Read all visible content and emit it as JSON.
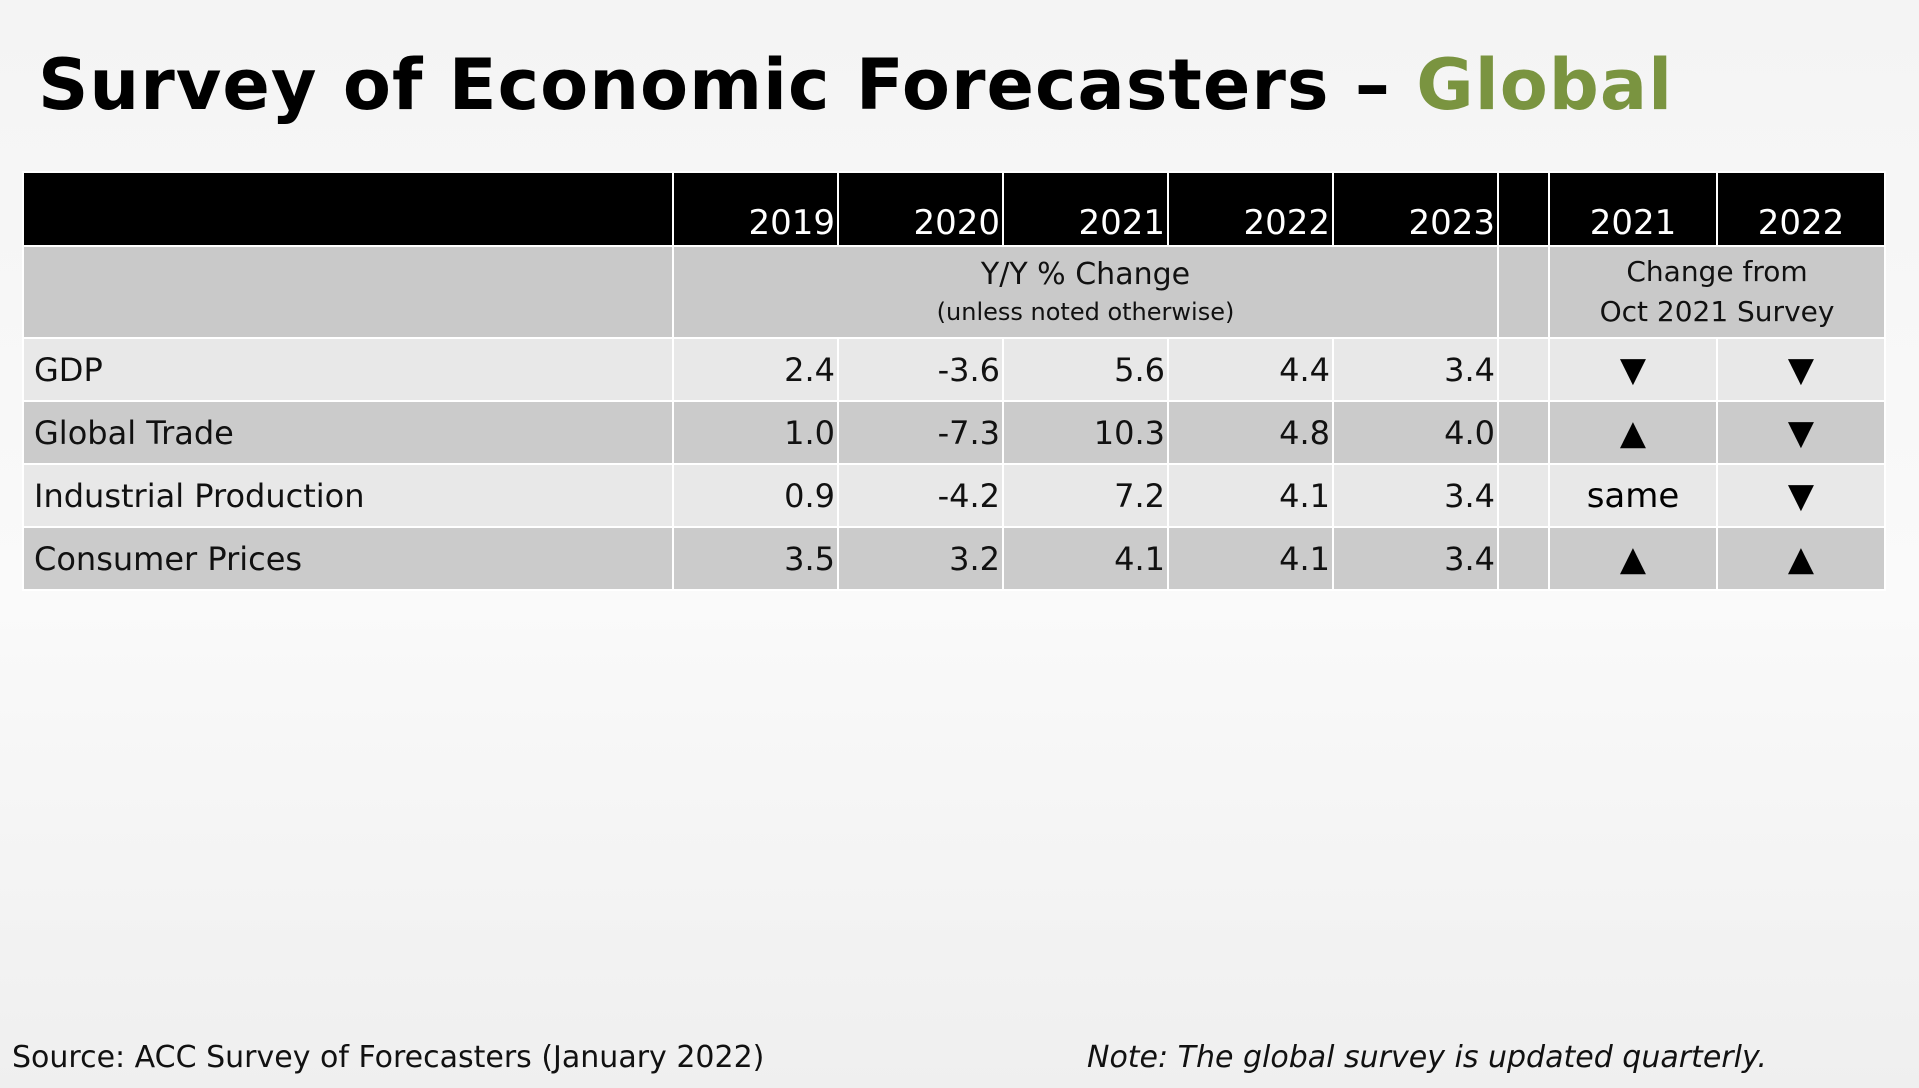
{
  "title": {
    "main": "Survey of Economic Forecasters – ",
    "accent": "Global"
  },
  "colors": {
    "accent": "#7a9440",
    "header_bg": "#000000",
    "band_dark": "#cbcbcb",
    "band_light": "#e8e8e8"
  },
  "chart_data": {
    "type": "table",
    "title": "Survey of Economic Forecasters – Global",
    "columns": [
      "",
      "2019",
      "2020",
      "2021",
      "2022",
      "2023",
      "",
      "2021",
      "2022"
    ],
    "group_labels": {
      "yy": {
        "line1": "Y/Y % Change",
        "line2": "(unless noted otherwise)"
      },
      "change": {
        "line1": "Change from",
        "line2": "Oct 2021 Survey"
      }
    },
    "rows": [
      {
        "label": "GDP",
        "values": [
          "2.4",
          "-3.6",
          "5.6",
          "4.4",
          "3.4"
        ],
        "change": [
          "▼",
          "▼"
        ]
      },
      {
        "label": "Global Trade",
        "values": [
          "1.0",
          "-7.3",
          "10.3",
          "4.8",
          "4.0"
        ],
        "change": [
          "▲",
          "▼"
        ]
      },
      {
        "label": "Industrial Production",
        "values": [
          "0.9",
          "-4.2",
          "7.2",
          "4.1",
          "3.4"
        ],
        "change": [
          "same",
          "▼"
        ]
      },
      {
        "label": "Consumer Prices",
        "values": [
          "3.5",
          "3.2",
          "4.1",
          "4.1",
          "3.4"
        ],
        "change": [
          "▲",
          "▲"
        ]
      }
    ]
  },
  "footer": {
    "source": "Source: ACC Survey of Forecasters (January 2022)",
    "note": "Note: The global survey is updated quarterly."
  }
}
